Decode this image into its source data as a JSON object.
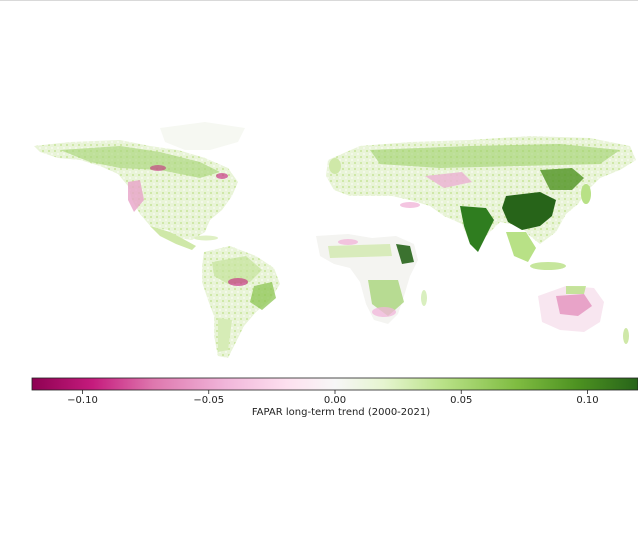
{
  "colorbar": {
    "label": "FAPAR long-term trend (2000-2021)",
    "vmin": -0.12,
    "vmax": 0.12,
    "ticks": [
      {
        "value": -0.1,
        "label": "−0.10"
      },
      {
        "value": -0.05,
        "label": "−0.05"
      },
      {
        "value": 0.0,
        "label": "0.00"
      },
      {
        "value": 0.05,
        "label": "0.05"
      },
      {
        "value": 0.1,
        "label": "0.10"
      }
    ],
    "colors": {
      "strong_negative": "#8e0152",
      "negative": "#de77ae",
      "weak_negative": "#fde0ef",
      "neutral": "#f7f7f7",
      "weak_positive": "#e6f5d0",
      "positive": "#7fbc41",
      "strong_positive": "#276419"
    }
  }
}
